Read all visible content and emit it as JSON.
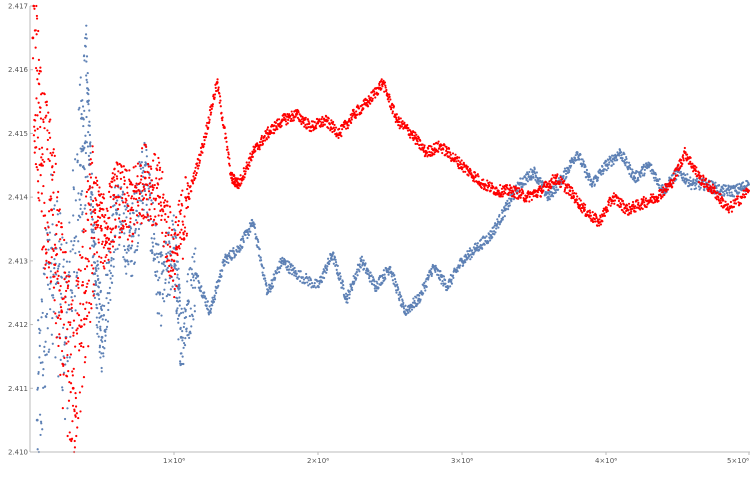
{
  "chart_data": {
    "type": "scatter",
    "title": "",
    "xlabel": "",
    "ylabel": "",
    "xlim": [
      0,
      5000000
    ],
    "ylim": [
      2.41,
      2.417
    ],
    "grid": false,
    "legend": "none",
    "x_ticks": [
      {
        "value": 1000000,
        "label": "1×10⁶"
      },
      {
        "value": 2000000,
        "label": "2×10⁶"
      },
      {
        "value": 3000000,
        "label": "3×10⁶"
      },
      {
        "value": 4000000,
        "label": "4×10⁶"
      },
      {
        "value": 5000000,
        "label": "5×10⁶"
      }
    ],
    "y_ticks": [
      {
        "value": 2.41,
        "label": "2.410"
      },
      {
        "value": 2.411,
        "label": "2.411"
      },
      {
        "value": 2.412,
        "label": "2.412"
      },
      {
        "value": 2.413,
        "label": "2.413"
      },
      {
        "value": 2.414,
        "label": "2.414"
      },
      {
        "value": 2.415,
        "label": "2.415"
      },
      {
        "value": 2.416,
        "label": "2.416"
      },
      {
        "value": 2.417,
        "label": "2.417"
      }
    ],
    "series": [
      {
        "color": "#5e81b5",
        "x": [
          50000,
          150000,
          250000,
          350000,
          400000,
          450000,
          500000,
          600000,
          700000,
          800000,
          900000,
          1000000,
          1050000,
          1150000,
          1250000,
          1350000,
          1450000,
          1550000,
          1650000,
          1750000,
          1850000,
          2000000,
          2100000,
          2200000,
          2300000,
          2400000,
          2500000,
          2600000,
          2700000,
          2800000,
          2900000,
          3000000,
          3100000,
          3200000,
          3300000,
          3400000,
          3500000,
          3600000,
          3700000,
          3800000,
          3900000,
          4000000,
          4100000,
          4200000,
          4300000,
          4400000,
          4500000,
          4600000,
          4700000,
          4800000,
          4900000,
          4990000
        ],
        "y": [
          2.4105,
          2.4132,
          2.4118,
          2.4145,
          2.4155,
          2.4128,
          2.4118,
          2.4138,
          2.4132,
          2.4145,
          2.4125,
          2.4132,
          2.4118,
          2.4128,
          2.4122,
          2.413,
          2.4132,
          2.4136,
          2.4125,
          2.413,
          2.4128,
          2.4126,
          2.4131,
          2.4124,
          2.413,
          2.4126,
          2.4129,
          2.4122,
          2.4124,
          2.4129,
          2.4126,
          2.413,
          2.4132,
          2.4134,
          2.4138,
          2.4142,
          2.4144,
          2.414,
          2.4143,
          2.4147,
          2.4142,
          2.4145,
          2.4147,
          2.4143,
          2.4145,
          2.4141,
          2.4144,
          2.4142,
          2.4142,
          2.4141,
          2.4141,
          2.4142
        ]
      },
      {
        "color": "#ff0000",
        "x": [
          20000,
          80000,
          150000,
          220000,
          300000,
          380000,
          450000,
          520000,
          600000,
          700000,
          800000,
          900000,
          1000000,
          1100000,
          1200000,
          1300000,
          1400000,
          1450000,
          1550000,
          1650000,
          1750000,
          1850000,
          1950000,
          2050000,
          2150000,
          2250000,
          2350000,
          2450000,
          2550000,
          2650000,
          2750000,
          2850000,
          2950000,
          3050000,
          3150000,
          3250000,
          3350000,
          3450000,
          3550000,
          3650000,
          3750000,
          3850000,
          3950000,
          4050000,
          4150000,
          4250000,
          4350000,
          4450000,
          4550000,
          4650000,
          4750000,
          4850000,
          4990000
        ],
        "y": [
          2.4165,
          2.4145,
          2.4138,
          2.4122,
          2.411,
          2.4125,
          2.4138,
          2.4134,
          2.414,
          2.4138,
          2.4143,
          2.414,
          2.413,
          2.414,
          2.4148,
          2.4158,
          2.4143,
          2.4142,
          2.4147,
          2.415,
          2.4152,
          2.4153,
          2.4151,
          2.4152,
          2.415,
          2.4153,
          2.4155,
          2.4158,
          2.4152,
          2.415,
          2.4147,
          2.4148,
          2.4146,
          2.4144,
          2.4142,
          2.4141,
          2.4141,
          2.414,
          2.4141,
          2.4143,
          2.4141,
          2.4138,
          2.4136,
          2.414,
          2.4138,
          2.4139,
          2.414,
          2.4142,
          2.4147,
          2.4143,
          2.4141,
          2.4138,
          2.4141
        ]
      }
    ]
  }
}
